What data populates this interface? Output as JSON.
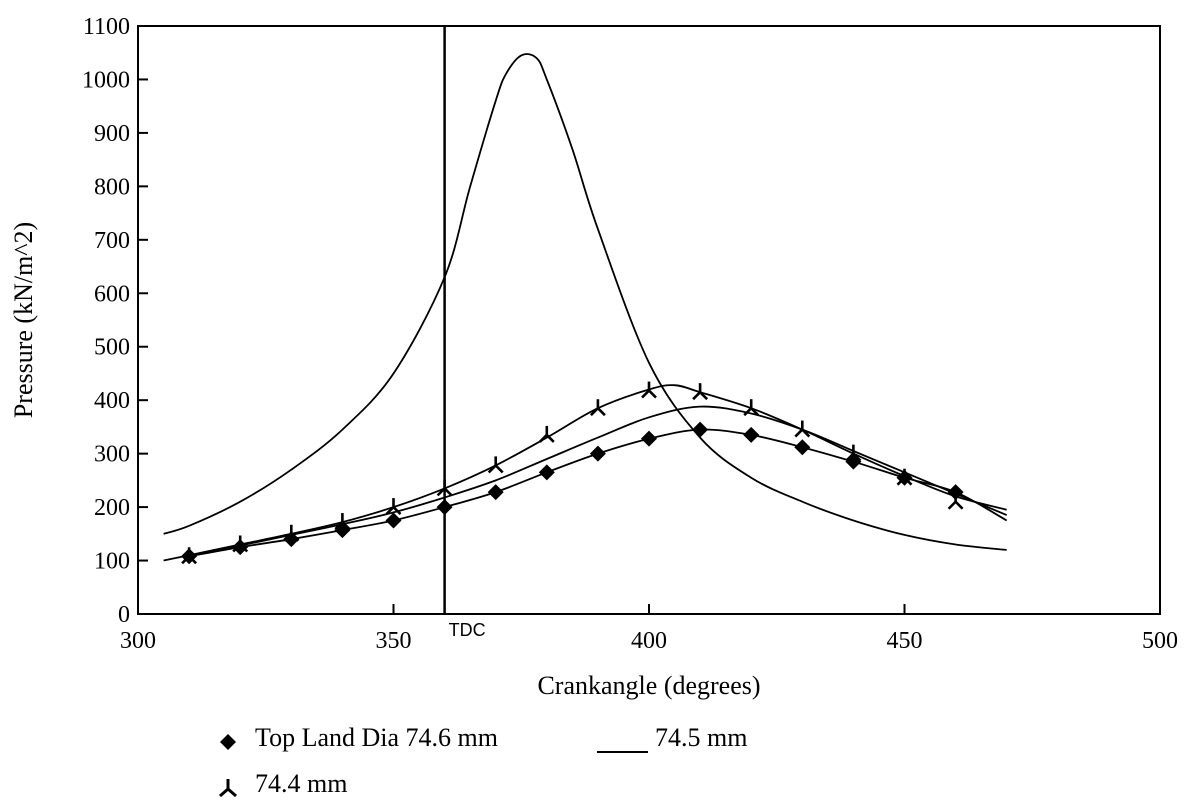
{
  "chart_data": {
    "type": "line",
    "xlabel": "Crankangle (degrees)",
    "ylabel": "Pressure (kN/m^2)",
    "xlim": [
      300,
      500
    ],
    "ylim": [
      0,
      1100
    ],
    "xticks": [
      300,
      350,
      400,
      450,
      500
    ],
    "yticks": [
      0,
      100,
      200,
      300,
      400,
      500,
      600,
      700,
      800,
      900,
      1000,
      1100
    ],
    "grid": false,
    "legend_position": "bottom-left",
    "legend": {
      "entry1": "Top Land Dia 74.6 mm",
      "entry2": "74.5 mm",
      "entry3": "74.4 mm"
    },
    "annotations": [
      {
        "text": "TDC",
        "x": 360
      }
    ],
    "series": [
      {
        "name": "Top Land Dia 74.6 mm",
        "style": "diamond-markers-with-line",
        "x": [
          310,
          320,
          330,
          340,
          350,
          360,
          370,
          380,
          390,
          400,
          410,
          420,
          430,
          440,
          450,
          460,
          470
        ],
        "y": [
          108,
          125,
          140,
          157,
          175,
          200,
          228,
          265,
          300,
          328,
          345,
          335,
          312,
          285,
          255,
          228,
          175
        ],
        "markers_x": [
          310,
          320,
          330,
          340,
          350,
          360,
          370,
          380,
          390,
          400,
          410,
          420,
          430,
          440,
          450,
          460
        ],
        "markers_y": [
          108,
          125,
          140,
          157,
          175,
          200,
          228,
          265,
          300,
          328,
          345,
          335,
          312,
          285,
          255,
          228
        ]
      },
      {
        "name": "74.5 mm",
        "style": "line",
        "x": [
          310,
          320,
          330,
          340,
          350,
          360,
          370,
          380,
          390,
          400,
          410,
          420,
          430,
          440,
          450,
          460,
          470
        ],
        "y": [
          108,
          128,
          148,
          168,
          190,
          218,
          250,
          290,
          330,
          368,
          388,
          375,
          345,
          305,
          265,
          225,
          185
        ]
      },
      {
        "name": "74.4 mm",
        "style": "tri-markers-with-line",
        "x": [
          305,
          310,
          320,
          330,
          340,
          350,
          360,
          370,
          380,
          390,
          400,
          405,
          410,
          420,
          430,
          440,
          450,
          460,
          470
        ],
        "y": [
          100,
          110,
          130,
          150,
          172,
          200,
          235,
          278,
          330,
          385,
          420,
          428,
          415,
          385,
          345,
          300,
          258,
          220,
          195
        ],
        "markers_x": [
          310,
          320,
          330,
          340,
          350,
          360,
          370,
          380,
          390,
          400,
          410,
          420,
          430,
          440,
          450,
          460
        ],
        "markers_y": [
          108,
          130,
          150,
          172,
          200,
          235,
          278,
          335,
          385,
          418,
          415,
          385,
          345,
          300,
          255,
          210
        ]
      },
      {
        "name": "",
        "style": "line",
        "x": [
          305,
          310,
          320,
          330,
          340,
          350,
          360,
          365,
          370,
          372,
          375,
          378,
          380,
          385,
          390,
          400,
          410,
          420,
          430,
          440,
          450,
          460,
          470
        ],
        "y": [
          150,
          165,
          210,
          270,
          345,
          450,
          630,
          800,
          960,
          1010,
          1045,
          1040,
          1000,
          870,
          720,
          470,
          330,
          255,
          210,
          175,
          148,
          130,
          120
        ]
      }
    ]
  }
}
